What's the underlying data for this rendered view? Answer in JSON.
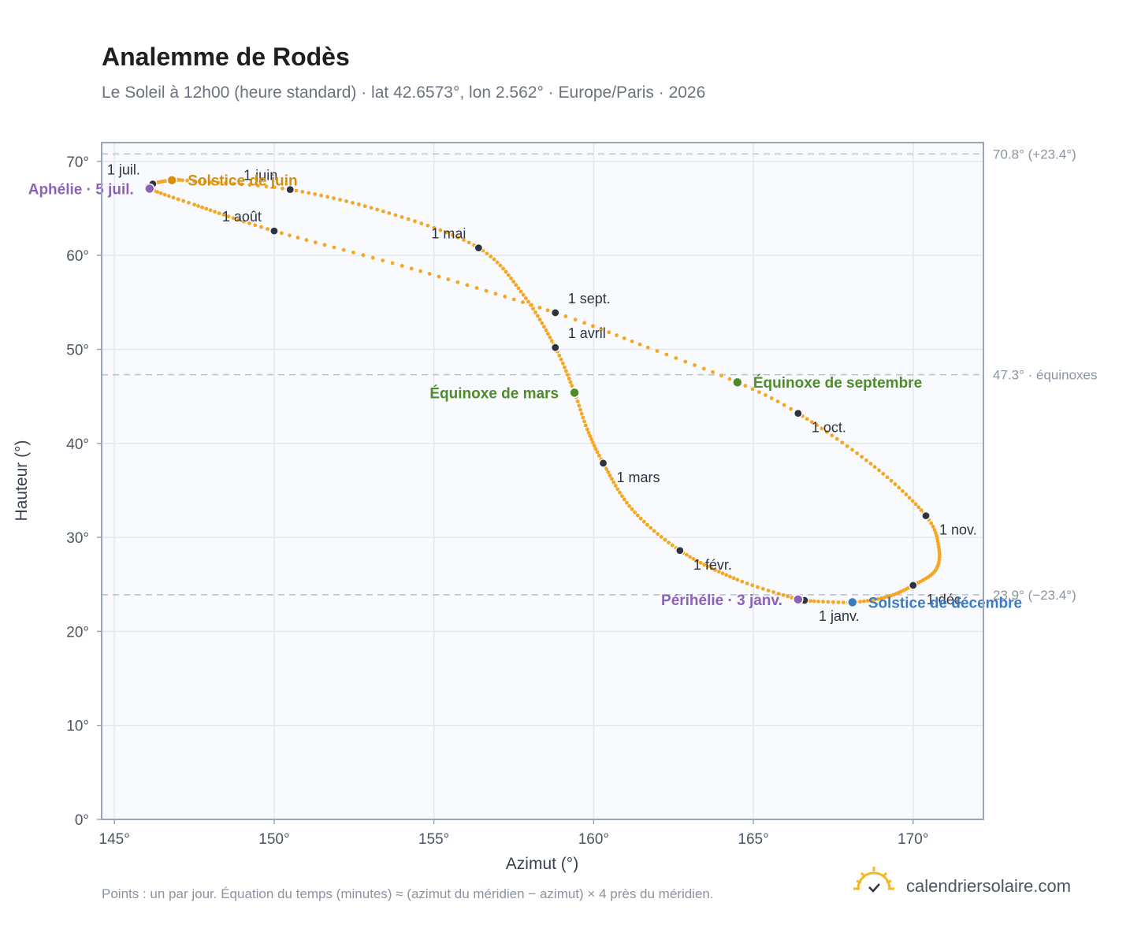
{
  "title": "Analemme de Rodès",
  "subtitle": "Le Soleil à 12h00 (heure standard) · lat 42.6573°, lon 2.562° · Europe/Paris · 2026",
  "footnote": "Points : un par jour. Équation du temps (minutes) ≈ (azimut du méridien − azimut) × 4 près du méridien.",
  "brand": {
    "name": "calendriersolaire.com",
    "icon": "sun-logo-icon"
  },
  "colors": {
    "curve": "#f5a623",
    "month_marker": "#2d3340",
    "solstice_june": "#d4900c",
    "solstice_december": "#3a7bc8",
    "equinox": "#4e8c2a",
    "apsis": "#8b63b5",
    "plot_bg": "#f8fafd",
    "grid": "#e3e8ef",
    "frame": "#9aa5b5",
    "ref_line": "#b9c2cd"
  },
  "chart_data": {
    "type": "scatter",
    "title": "Analemme de Rodès",
    "xlabel": "Azimut (°)",
    "ylabel": "Hauteur (°)",
    "xlim": [
      144.6,
      172.2
    ],
    "ylim": [
      0,
      72
    ],
    "x_ticks": [
      145,
      150,
      155,
      160,
      165,
      170
    ],
    "x_tick_labels": [
      "145°",
      "150°",
      "155°",
      "160°",
      "165°",
      "170°"
    ],
    "y_ticks": [
      0,
      10,
      20,
      30,
      40,
      50,
      60,
      70
    ],
    "y_tick_labels": [
      "0°",
      "10°",
      "20°",
      "30°",
      "40°",
      "50°",
      "60°",
      "70°"
    ],
    "grid": true,
    "reference_lines": [
      {
        "y": 70.8,
        "label": "70.8° (+23.4°)"
      },
      {
        "y": 47.3,
        "label": "47.3° · équinoxes"
      },
      {
        "y": 23.9,
        "label": "23.9° (−23.4°)"
      }
    ],
    "month_markers": [
      {
        "label": "1 janv.",
        "azimuth": 166.6,
        "altitude": 23.3,
        "label_pos": "below"
      },
      {
        "label": "1 févr.",
        "azimuth": 162.7,
        "altitude": 28.6,
        "label_pos": "below-right"
      },
      {
        "label": "1 mars",
        "azimuth": 160.3,
        "altitude": 37.9,
        "label_pos": "below-right"
      },
      {
        "label": "1 avril",
        "azimuth": 158.8,
        "altitude": 50.2,
        "label_pos": "above-right"
      },
      {
        "label": "1 mai",
        "azimuth": 156.4,
        "altitude": 60.8,
        "label_pos": "above-left"
      },
      {
        "label": "1 juin",
        "azimuth": 150.5,
        "altitude": 67.0,
        "label_pos": "above-left"
      },
      {
        "label": "1 juil.",
        "azimuth": 146.2,
        "altitude": 67.6,
        "label_pos": "above-left"
      },
      {
        "label": "1 août",
        "azimuth": 150.0,
        "altitude": 62.6,
        "label_pos": "above-left"
      },
      {
        "label": "1 sept.",
        "azimuth": 158.8,
        "altitude": 53.9,
        "label_pos": "above-right"
      },
      {
        "label": "1 oct.",
        "azimuth": 166.4,
        "altitude": 43.2,
        "label_pos": "below-right"
      },
      {
        "label": "1 nov.",
        "azimuth": 170.4,
        "altitude": 32.3,
        "label_pos": "below-right"
      },
      {
        "label": "1 déc.",
        "azimuth": 170.0,
        "altitude": 24.9,
        "label_pos": "below-right"
      }
    ],
    "events": [
      {
        "label": "Solstice de juin",
        "azimuth": 146.8,
        "altitude": 68.0,
        "color": "solstice_june",
        "label_pos": "right"
      },
      {
        "label": "Aphélie · 5 juil.",
        "azimuth": 146.1,
        "altitude": 67.1,
        "color": "apsis",
        "label_pos": "left"
      },
      {
        "label": "Équinoxe de mars",
        "azimuth": 159.4,
        "altitude": 45.4,
        "color": "equinox",
        "label_pos": "left"
      },
      {
        "label": "Équinoxe de septembre",
        "azimuth": 164.5,
        "altitude": 46.5,
        "color": "equinox",
        "label_pos": "right"
      },
      {
        "label": "Périhélie · 3 janv.",
        "azimuth": 166.4,
        "altitude": 23.4,
        "color": "apsis",
        "label_pos": "left"
      },
      {
        "label": "Solstice de décembre",
        "azimuth": 168.1,
        "altitude": 23.1,
        "color": "solstice_december",
        "label_pos": "right"
      }
    ],
    "path_anchors": [
      {
        "doy": 1,
        "azimuth": 166.6,
        "altitude": 23.3
      },
      {
        "doy": 3,
        "azimuth": 166.4,
        "altitude": 23.4
      },
      {
        "doy": 16,
        "azimuth": 164.5,
        "altitude": 25.5
      },
      {
        "doy": 32,
        "azimuth": 162.7,
        "altitude": 28.6
      },
      {
        "doy": 46,
        "azimuth": 161.2,
        "altitude": 33.0
      },
      {
        "doy": 60,
        "azimuth": 160.3,
        "altitude": 37.9
      },
      {
        "doy": 70,
        "azimuth": 159.8,
        "altitude": 41.5
      },
      {
        "doy": 79,
        "azimuth": 159.4,
        "altitude": 45.4
      },
      {
        "doy": 91,
        "azimuth": 158.8,
        "altitude": 50.2
      },
      {
        "doy": 106,
        "azimuth": 157.8,
        "altitude": 55.8
      },
      {
        "doy": 121,
        "azimuth": 156.4,
        "altitude": 60.8
      },
      {
        "doy": 136,
        "azimuth": 153.6,
        "altitude": 64.5
      },
      {
        "doy": 152,
        "azimuth": 150.5,
        "altitude": 67.0
      },
      {
        "doy": 165,
        "azimuth": 147.5,
        "altitude": 67.9
      },
      {
        "doy": 172,
        "azimuth": 146.8,
        "altitude": 68.0
      },
      {
        "doy": 182,
        "azimuth": 146.2,
        "altitude": 67.6
      },
      {
        "doy": 186,
        "azimuth": 146.1,
        "altitude": 67.1
      },
      {
        "doy": 197,
        "azimuth": 147.5,
        "altitude": 65.4
      },
      {
        "doy": 213,
        "azimuth": 150.0,
        "altitude": 62.6
      },
      {
        "doy": 228,
        "azimuth": 154.3,
        "altitude": 58.6
      },
      {
        "doy": 244,
        "azimuth": 158.8,
        "altitude": 53.9
      },
      {
        "doy": 255,
        "azimuth": 161.7,
        "altitude": 50.2
      },
      {
        "doy": 265,
        "azimuth": 164.5,
        "altitude": 46.5
      },
      {
        "doy": 274,
        "azimuth": 166.4,
        "altitude": 43.2
      },
      {
        "doy": 290,
        "azimuth": 168.8,
        "altitude": 37.5
      },
      {
        "doy": 305,
        "azimuth": 170.4,
        "altitude": 32.3
      },
      {
        "doy": 315,
        "azimuth": 170.8,
        "altitude": 29.0
      },
      {
        "doy": 325,
        "azimuth": 170.7,
        "altitude": 26.5
      },
      {
        "doy": 335,
        "azimuth": 170.0,
        "altitude": 24.9
      },
      {
        "doy": 345,
        "azimuth": 169.2,
        "altitude": 23.7
      },
      {
        "doy": 355,
        "azimuth": 168.1,
        "altitude": 23.1
      },
      {
        "doy": 365,
        "azimuth": 166.7,
        "altitude": 23.25
      }
    ]
  }
}
